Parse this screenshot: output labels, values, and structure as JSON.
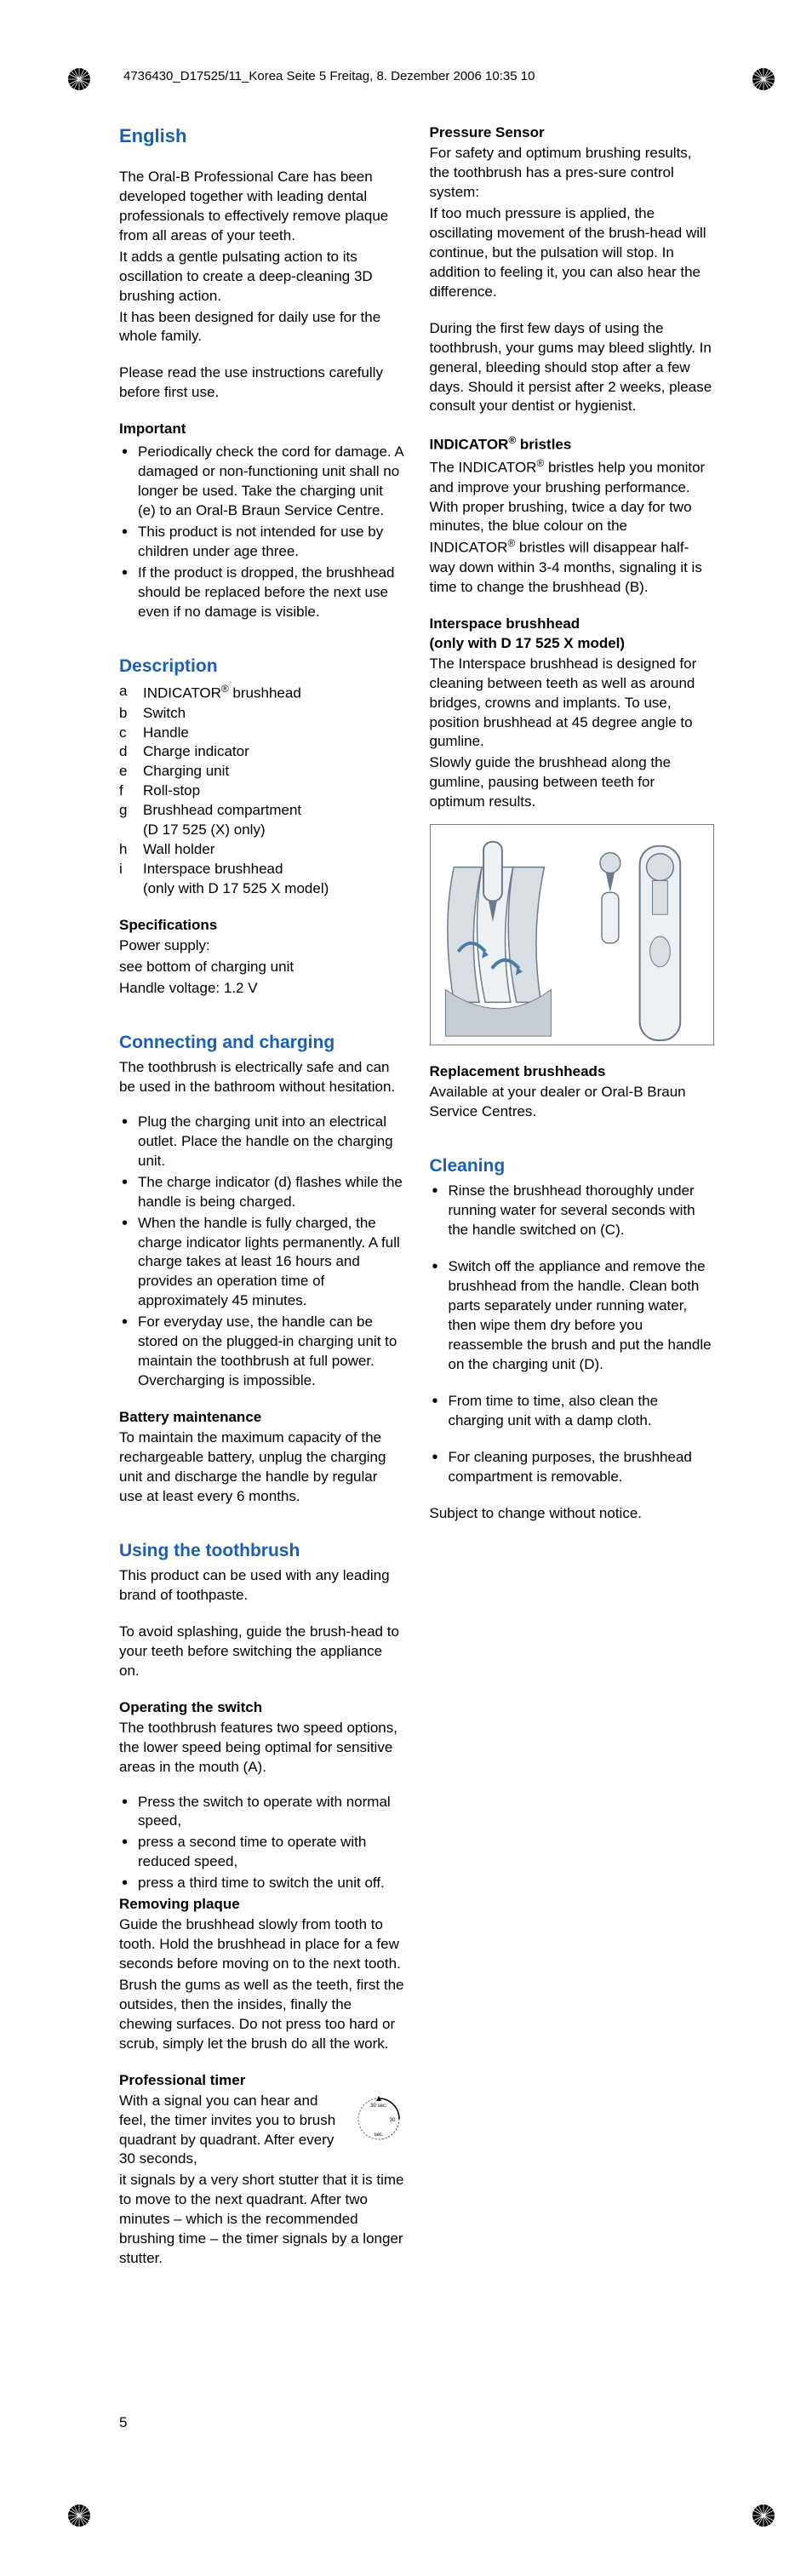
{
  "header": "4736430_D17525/11_Korea  Seite 5  Freitag, 8. Dezember 2006  10:35 10",
  "pageNumber": "5",
  "colors": {
    "heading": "#1a5fb4",
    "text": "#000000",
    "border": "#7a7a7a",
    "illus_fill": "#d9dee3",
    "illus_stroke": "#6a7a8a"
  },
  "title": "English",
  "intro1": "The  Oral-B Professional Care has been developed together with leading dental professionals to effectively remove plaque from all areas of your teeth.",
  "intro2": "It adds a gentle pulsating action to its oscillation to create a deep-cleaning 3D brushing action.",
  "intro3": "It has been designed for daily use for the whole family.",
  "intro4": "Please read the use instructions carefully before first use.",
  "important_h": "Important",
  "important": [
    "Periodically check the cord for damage. A damaged or non-functioning unit shall no longer be used. Take the charging unit (e) to an Oral-B Braun Service Centre.",
    "This product is not intended for use by children under age three.",
    "If the product is dropped, the brushhead should be replaced before the next use even if no damage is visible."
  ],
  "description_h": "Description",
  "description": [
    {
      "k": "a",
      "v_pre": "INDICATOR",
      "v_post": " brushhead",
      "sup": "®"
    },
    {
      "k": "b",
      "v": "Switch"
    },
    {
      "k": "c",
      "v": "Handle"
    },
    {
      "k": "d",
      "v": "Charge indicator"
    },
    {
      "k": "e",
      "v": "Charging unit"
    },
    {
      "k": "f",
      "v": "Roll-stop"
    },
    {
      "k": "g",
      "v": "Brushhead compartment",
      "sub": "(D 17 525 (X) only)"
    },
    {
      "k": "h",
      "v": "Wall holder"
    },
    {
      "k": "i",
      "v": "Interspace brushhead",
      "sub": "(only with D 17 525 X model)"
    }
  ],
  "specs_h": "Specifications",
  "specs1": "Power supply:",
  "specs2": "see bottom of charging unit",
  "specs3": "Handle voltage: 1.2 V",
  "connect_h": "Connecting and charging",
  "connect_p": "The toothbrush is electrically safe and can be used in the bathroom without hesitation.",
  "connect_list": [
    "Plug the charging unit into an electrical outlet. Place the handle on the charging unit.",
    "The charge indicator (d) flashes while the handle is being charged.",
    "When the handle is fully charged, the charge indicator lights permanently. A full charge takes at least 16 hours and provides an operation time of approximately 45 minutes.",
    "For everyday use, the handle can be stored on the plugged-in charging unit to maintain the toothbrush at full power. Overcharging is impossible."
  ],
  "battery_h": "Battery maintenance",
  "battery_p": "To maintain the maximum capacity of the rechargeable battery, unplug the charging unit and discharge the handle by regular use at least every 6 months.",
  "using_h": "Using the toothbrush",
  "using_p1": "This product can be used with any leading brand of toothpaste.",
  "using_p2": "To avoid splashing, guide the brush-head to your teeth before switching the appliance on.",
  "opswitch_h": "Operating the switch",
  "opswitch_p": "The toothbrush features two speed options, the lower speed being optimal for sensitive areas in the mouth (A).",
  "opswitch_list": [
    "Press the switch to operate with normal speed,",
    "press a second time to operate with reduced speed,",
    "press a third time to switch the unit off."
  ],
  "plaque_h": "Removing plaque",
  "plaque_p1": "Guide the brushhead slowly from tooth to tooth. Hold the brushhead in place for a few seconds before moving on to the next tooth.",
  "plaque_p2": "Brush the gums as well as the teeth, first the outsides, then the insides, finally the chewing surfaces. Do not press too hard or scrub, simply let the brush do all the work.",
  "timer_h": "Professional timer",
  "timer_p1": "With a signal you can hear and feel, the timer invites you to brush quadrant by quadrant. After every 30 seconds,",
  "timer_p2": "it signals by a very short stutter that it is time to move to the next quadrant. After two minutes – which is the recommended brushing time – the timer signals by a longer stutter.",
  "pressure_h": "Pressure Sensor",
  "pressure_p1": "For safety and optimum brushing results, the toothbrush has a pres-sure control system:",
  "pressure_p2": "If too much pressure is applied, the oscillating movement of the brush-head will continue, but the pulsation will stop. In addition to feeling it, you can also hear the difference.",
  "pressure_p3": "During the first few days of using the toothbrush, your gums may bleed slightly. In general, bleeding should stop after a few days. Should it persist after 2 weeks, please consult your dentist or hygienist.",
  "indicator_h_pre": "INDICATOR",
  "indicator_h_post": " bristles",
  "indicator_p_a": "The INDICATOR",
  "indicator_p_b": " bristles help you monitor and improve your brushing performance. With proper brushing, twice a day for two minutes, the blue colour on the INDICATOR",
  "indicator_p_c": " bristles will disappear half-way down within 3-4 months, signaling it is time to change the brushhead (B).",
  "interspace_h1": "Interspace brushhead",
  "interspace_h2": "(only with D 17 525 X model)",
  "interspace_p1": "The Interspace brushhead is designed for cleaning between teeth as well as around bridges, crowns and implants. To use, position brushhead at 45 degree angle to gumline.",
  "interspace_p2": "Slowly guide the brushhead along the gumline, pausing between teeth for optimum results.",
  "replace_h": "Replacement brushheads",
  "replace_p": "Available at your dealer or Oral-B Braun Service Centres.",
  "cleaning_h": "Cleaning",
  "cleaning_list": [
    "Rinse the brushhead thoroughly under running water for several seconds with the handle switched on (C).",
    "Switch off the appliance and remove the brushhead from the handle. Clean both parts separately under running water, then wipe them dry before you reassemble the brush and put the handle on the charging unit (D).",
    "From time to time, also clean the charging unit with a damp cloth.",
    "For cleaning purposes, the brushhead compartment is removable."
  ],
  "notice": "Subject to change without notice."
}
